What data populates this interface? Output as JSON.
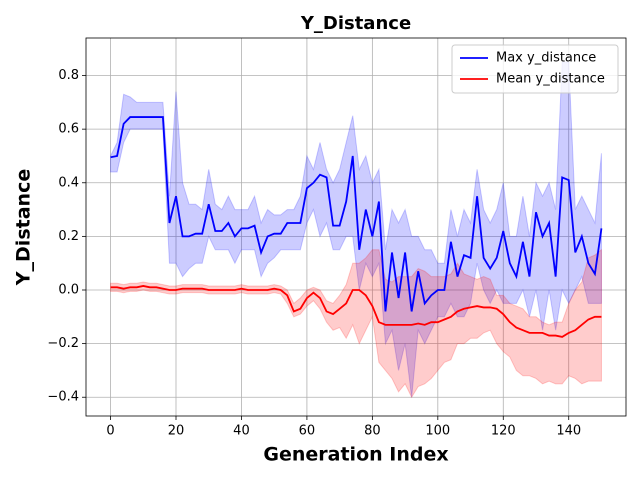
{
  "chart_data": {
    "type": "line",
    "title": "Y_Distance",
    "x_label": "Generation Index",
    "y_label": "Y_Distance",
    "x": [
      0,
      2,
      4,
      6,
      8,
      10,
      12,
      14,
      16,
      18,
      20,
      22,
      24,
      26,
      28,
      30,
      32,
      34,
      36,
      38,
      40,
      42,
      44,
      46,
      48,
      50,
      52,
      54,
      56,
      58,
      60,
      62,
      64,
      66,
      68,
      70,
      72,
      74,
      76,
      78,
      80,
      82,
      84,
      86,
      88,
      90,
      92,
      94,
      96,
      98,
      100,
      102,
      104,
      106,
      108,
      110,
      112,
      114,
      116,
      118,
      120,
      122,
      124,
      126,
      128,
      130,
      132,
      134,
      136,
      138,
      140,
      142,
      144,
      146,
      148,
      150
    ],
    "series": [
      {
        "name": "Max y_distance",
        "color": "#0000ff",
        "values": [
          0.495,
          0.5,
          0.62,
          0.645,
          0.645,
          0.645,
          0.645,
          0.645,
          0.645,
          0.25,
          0.35,
          0.2,
          0.2,
          0.21,
          0.21,
          0.32,
          0.22,
          0.22,
          0.25,
          0.2,
          0.23,
          0.23,
          0.24,
          0.14,
          0.2,
          0.21,
          0.21,
          0.25,
          0.25,
          0.25,
          0.38,
          0.4,
          0.43,
          0.42,
          0.24,
          0.24,
          0.33,
          0.5,
          0.15,
          0.3,
          0.2,
          0.33,
          -0.08,
          0.14,
          -0.03,
          0.14,
          -0.08,
          0.07,
          -0.05,
          -0.02,
          0.0,
          0.0,
          0.18,
          0.05,
          0.13,
          0.12,
          0.35,
          0.12,
          0.08,
          0.12,
          0.22,
          0.1,
          0.05,
          0.18,
          0.05,
          0.29,
          0.2,
          0.25,
          0.05,
          0.42,
          0.41,
          0.14,
          0.2,
          0.1,
          0.06,
          0.23
        ],
        "lower": [
          0.44,
          0.44,
          0.55,
          0.6,
          0.6,
          0.6,
          0.6,
          0.6,
          0.6,
          0.1,
          0.1,
          0.05,
          0.08,
          0.1,
          0.1,
          0.2,
          0.15,
          0.15,
          0.15,
          0.1,
          0.15,
          0.15,
          0.15,
          0.05,
          0.1,
          0.12,
          0.15,
          0.15,
          0.15,
          0.15,
          0.25,
          0.3,
          0.2,
          0.25,
          0.15,
          0.15,
          0.2,
          0.2,
          0.0,
          0.1,
          0.05,
          0.1,
          -0.2,
          -0.15,
          -0.3,
          -0.2,
          -0.4,
          -0.15,
          -0.2,
          -0.15,
          -0.1,
          -0.1,
          -0.05,
          -0.1,
          -0.1,
          -0.05,
          0.1,
          0.0,
          -0.05,
          0.0,
          -0.05,
          -0.05,
          -0.05,
          0.0,
          -0.1,
          0.0,
          -0.15,
          0.0,
          -0.15,
          0.0,
          -0.05,
          0.0,
          0.05,
          -0.05,
          -0.05,
          -0.05
        ],
        "upper": [
          0.5,
          0.55,
          0.73,
          0.72,
          0.7,
          0.7,
          0.7,
          0.7,
          0.7,
          0.35,
          0.74,
          0.4,
          0.32,
          0.32,
          0.3,
          0.45,
          0.32,
          0.3,
          0.35,
          0.3,
          0.3,
          0.3,
          0.35,
          0.25,
          0.3,
          0.28,
          0.28,
          0.3,
          0.3,
          0.35,
          0.5,
          0.45,
          0.55,
          0.45,
          0.4,
          0.45,
          0.55,
          0.65,
          0.45,
          0.5,
          0.4,
          0.45,
          0.15,
          0.3,
          0.25,
          0.3,
          0.2,
          0.2,
          0.15,
          0.15,
          0.1,
          0.1,
          0.3,
          0.2,
          0.3,
          0.25,
          0.45,
          0.3,
          0.25,
          0.3,
          0.4,
          0.2,
          0.2,
          0.35,
          0.2,
          0.4,
          0.35,
          0.4,
          0.3,
          0.85,
          0.85,
          0.3,
          0.35,
          0.3,
          0.25,
          0.51
        ]
      },
      {
        "name": "Mean y_distance",
        "color": "#ff0000",
        "values": [
          0.01,
          0.01,
          0.005,
          0.01,
          0.01,
          0.015,
          0.01,
          0.01,
          0.005,
          0,
          0,
          0.005,
          0.005,
          0.005,
          0.005,
          0,
          0,
          0,
          0,
          0,
          0.005,
          0,
          0,
          0,
          0,
          0.005,
          0,
          -0.02,
          -0.08,
          -0.07,
          -0.03,
          -0.01,
          -0.03,
          -0.08,
          -0.09,
          -0.07,
          -0.05,
          0,
          0,
          -0.02,
          -0.06,
          -0.12,
          -0.13,
          -0.13,
          -0.13,
          -0.13,
          -0.13,
          -0.125,
          -0.13,
          -0.12,
          -0.12,
          -0.11,
          -0.1,
          -0.08,
          -0.07,
          -0.065,
          -0.06,
          -0.065,
          -0.065,
          -0.07,
          -0.09,
          -0.12,
          -0.14,
          -0.15,
          -0.16,
          -0.16,
          -0.16,
          -0.17,
          -0.17,
          -0.175,
          -0.16,
          -0.15,
          -0.13,
          -0.11,
          -0.1,
          -0.1
        ],
        "lower": [
          -0.005,
          -0.005,
          -0.01,
          -0.005,
          -0.005,
          0,
          -0.005,
          -0.005,
          -0.01,
          -0.015,
          -0.015,
          -0.01,
          -0.01,
          -0.01,
          -0.01,
          -0.015,
          -0.015,
          -0.015,
          -0.015,
          -0.015,
          -0.01,
          -0.015,
          -0.015,
          -0.015,
          -0.015,
          -0.01,
          -0.015,
          -0.05,
          -0.1,
          -0.09,
          -0.06,
          -0.04,
          -0.07,
          -0.12,
          -0.15,
          -0.14,
          -0.18,
          -0.13,
          -0.2,
          -0.15,
          -0.1,
          -0.27,
          -0.3,
          -0.33,
          -0.38,
          -0.35,
          -0.4,
          -0.36,
          -0.35,
          -0.33,
          -0.3,
          -0.27,
          -0.26,
          -0.2,
          -0.2,
          -0.18,
          -0.18,
          -0.16,
          -0.15,
          -0.2,
          -0.23,
          -0.25,
          -0.3,
          -0.32,
          -0.32,
          -0.33,
          -0.35,
          -0.34,
          -0.35,
          -0.35,
          -0.32,
          -0.33,
          -0.35,
          -0.34,
          -0.34,
          -0.34
        ],
        "upper": [
          0.025,
          0.025,
          0.02,
          0.025,
          0.025,
          0.03,
          0.025,
          0.025,
          0.02,
          0.015,
          0.015,
          0.02,
          0.02,
          0.02,
          0.02,
          0.015,
          0.015,
          0.015,
          0.015,
          0.015,
          0.02,
          0.015,
          0.015,
          0.015,
          0.015,
          0.02,
          0.015,
          0,
          -0.05,
          -0.03,
          0,
          0.01,
          0,
          -0.04,
          -0.05,
          -0.02,
          0.02,
          0.1,
          0.1,
          0.12,
          0.15,
          0.15,
          0.04,
          0.03,
          0.05,
          0.05,
          0.05,
          0.08,
          0.07,
          0.05,
          0.05,
          0.05,
          0.06,
          0.1,
          0.06,
          0.05,
          0.04,
          0.05,
          0.04,
          -0.02,
          -0.02,
          -0.05,
          -0.06,
          -0.07,
          -0.1,
          -0.1,
          -0.12,
          -0.13,
          -0.12,
          -0.12,
          -0.05,
          0,
          0.03,
          0.12,
          0.13,
          0.15
        ]
      }
    ],
    "xlim": [
      -7.5,
      157.5
    ],
    "ylim": [
      -0.47,
      0.94
    ],
    "xticks": [
      0,
      20,
      40,
      60,
      80,
      100,
      120,
      140
    ],
    "yticks": [
      {
        "value": -0.4,
        "label": "−0.4"
      },
      {
        "value": -0.2,
        "label": "−0.2"
      },
      {
        "value": 0,
        "label": "0.0"
      },
      0.2,
      0.4,
      0.6,
      0.8
    ],
    "grid": true,
    "legend": "upper right"
  }
}
